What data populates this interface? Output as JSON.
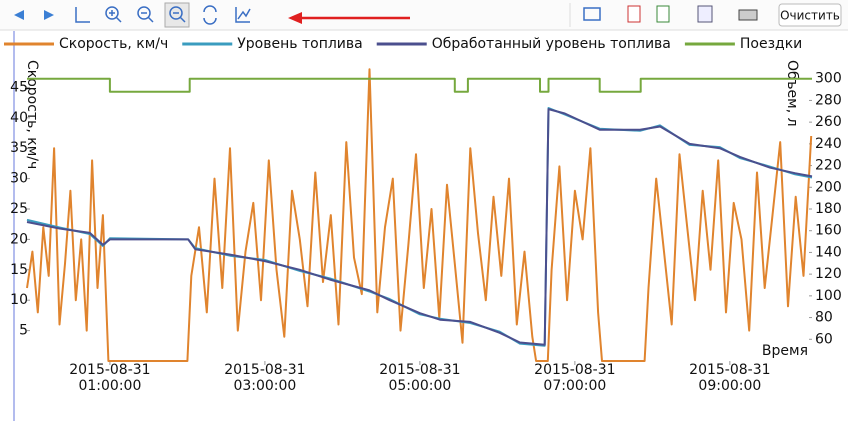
{
  "toolbar": {
    "clear_button": "Очистить"
  },
  "chart_data": {
    "type": "line",
    "x_label": "Время",
    "y_label": "Скорость, км/ч",
    "y2_label": "Объем, л",
    "xlim": [
      -0.07,
      10.06
    ],
    "xticks": [
      {
        "value": 1,
        "label": "2015-08-31 01:00:00"
      },
      {
        "value": 3,
        "label": "2015-08-31 03:00:00"
      },
      {
        "value": 5,
        "label": "2015-08-31 05:00:00"
      },
      {
        "value": 7,
        "label": "2015-08-31 07:00:00"
      },
      {
        "value": 9,
        "label": "2015-08-31 09:00:00"
      }
    ],
    "ylim": [
      0,
      50
    ],
    "yticks": [
      5,
      10,
      15,
      20,
      25,
      30,
      35,
      40,
      45
    ],
    "y2lim": [
      40,
      320
    ],
    "y2ticks": [
      60,
      80,
      100,
      120,
      140,
      160,
      180,
      200,
      220,
      240,
      260,
      280,
      300
    ],
    "grid": false,
    "legend": "top",
    "series": [
      {
        "name": "Скорость, км/ч",
        "color": "#e0842e",
        "axis": "y",
        "x": [
          -0.07,
          0,
          0.07,
          0.14,
          0.21,
          0.28,
          0.35,
          0.42,
          0.49,
          0.56,
          0.63,
          0.7,
          0.77,
          0.84,
          0.91,
          0.98,
          1.0,
          2.0,
          2.05,
          2.15,
          2.25,
          2.35,
          2.45,
          2.55,
          2.65,
          2.75,
          2.85,
          2.95,
          3.05,
          3.15,
          3.25,
          3.35,
          3.45,
          3.55,
          3.65,
          3.75,
          3.85,
          3.95,
          4.05,
          4.15,
          4.25,
          4.35,
          4.45,
          4.55,
          4.65,
          4.75,
          4.85,
          4.95,
          5.05,
          5.15,
          5.25,
          5.35,
          5.45,
          5.55,
          5.65,
          5.75,
          5.85,
          5.95,
          6.05,
          6.15,
          6.25,
          6.35,
          6.45,
          6.5,
          6.65,
          6.7,
          6.8,
          6.9,
          7.0,
          7.1,
          7.2,
          7.3,
          7.35,
          7.9,
          7.95,
          8.05,
          8.15,
          8.25,
          8.35,
          8.45,
          8.55,
          8.65,
          8.75,
          8.85,
          8.95,
          9.05,
          9.15,
          9.25,
          9.35,
          9.45,
          9.55,
          9.65,
          9.75,
          9.85,
          9.95,
          10.05
        ],
        "values": [
          12,
          18,
          8,
          22,
          14,
          35,
          6,
          16,
          28,
          10,
          20,
          5,
          33,
          12,
          24,
          0,
          0,
          0,
          14,
          22,
          8,
          30,
          12,
          35,
          5,
          18,
          26,
          10,
          33,
          15,
          4,
          28,
          20,
          9,
          31,
          13,
          24,
          6,
          36,
          17,
          11,
          48,
          8,
          22,
          30,
          5,
          19,
          34,
          12,
          25,
          7,
          29,
          16,
          3,
          35,
          21,
          10,
          27,
          14,
          30,
          6,
          18,
          4,
          0,
          0,
          15,
          32,
          10,
          28,
          20,
          35,
          8,
          0,
          0,
          12,
          30,
          18,
          6,
          34,
          22,
          10,
          28,
          15,
          33,
          8,
          26,
          20,
          5,
          31,
          12,
          24,
          36,
          9,
          27,
          14,
          37
        ]
      },
      {
        "name": "Уровень топлива",
        "color": "#3a9cbf",
        "axis": "y2",
        "x": [
          -0.07,
          0.35,
          0.74,
          0.91,
          1.0,
          2.01,
          2.1,
          2.55,
          3.0,
          3.45,
          3.84,
          4.35,
          4.61,
          5.0,
          5.26,
          5.65,
          6.03,
          6.29,
          6.61,
          6.66,
          6.87,
          7.32,
          7.84,
          8.1,
          8.48,
          8.87,
          9.13,
          9.52,
          9.84,
          10.06
        ],
        "values": [
          170,
          163,
          157,
          146,
          153,
          152,
          144,
          137,
          133,
          123,
          116,
          104,
          97,
          83,
          79,
          75,
          67,
          56,
          54,
          273,
          267,
          254,
          252,
          257,
          239,
          237,
          227,
          219,
          212,
          209
        ]
      },
      {
        "name": "Обработанный уровень топлива",
        "color": "#4b4f8e",
        "axis": "y2",
        "x": [
          -0.07,
          0.35,
          0.74,
          0.91,
          1.0,
          2.01,
          2.1,
          2.55,
          3.0,
          3.45,
          3.84,
          4.35,
          4.61,
          5.0,
          5.26,
          5.65,
          6.03,
          6.29,
          6.61,
          6.66,
          6.87,
          7.32,
          7.84,
          8.1,
          8.48,
          8.87,
          9.13,
          9.52,
          9.84,
          10.06
        ],
        "values": [
          168,
          162,
          158,
          147,
          152,
          152,
          143,
          138,
          132,
          124,
          115,
          105,
          96,
          84,
          78,
          76,
          66,
          57,
          55,
          272,
          268,
          253,
          253,
          256,
          240,
          236,
          228,
          218,
          213,
          210
        ]
      },
      {
        "name": "Поездки",
        "color": "#76a83e",
        "axis": "y2",
        "x": [
          -0.07,
          1.0,
          1.0,
          2.03,
          2.03,
          5.45,
          5.45,
          5.62,
          5.62,
          6.55,
          6.55,
          6.66,
          6.66,
          7.32,
          7.32,
          7.85,
          7.85,
          10.06
        ],
        "values": [
          300,
          300,
          288,
          288,
          300,
          300,
          288,
          288,
          300,
          300,
          288,
          288,
          300,
          300,
          288,
          288,
          300,
          300
        ]
      }
    ]
  }
}
